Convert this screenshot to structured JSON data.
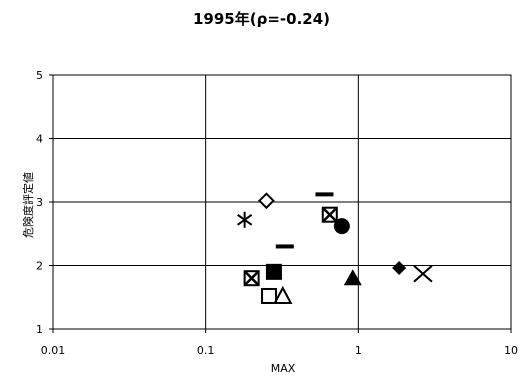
{
  "chart_data": {
    "type": "scatter",
    "title": "1995年(ρ=-0.24)",
    "xlabel": "MAX",
    "ylabel": "危険度評定値",
    "x_scale": "log",
    "xlim": [
      0.01,
      10
    ],
    "ylim": [
      1,
      5
    ],
    "x_ticks": [
      "0.01",
      "0.1",
      "1",
      "10"
    ],
    "y_ticks": [
      "1",
      "2",
      "3",
      "4",
      "5"
    ],
    "grid": "major gridlines on both axes",
    "legend": "none",
    "points": [
      {
        "marker": "diamond-open",
        "x": 0.25,
        "y": 3.02
      },
      {
        "marker": "asterisk",
        "x": 0.18,
        "y": 2.72
      },
      {
        "marker": "dash",
        "x": 0.6,
        "y": 3.12
      },
      {
        "marker": "x-square",
        "x": 0.65,
        "y": 2.8
      },
      {
        "marker": "circle-filled",
        "x": 0.78,
        "y": 2.62
      },
      {
        "marker": "dash",
        "x": 0.33,
        "y": 2.3
      },
      {
        "marker": "square-filled",
        "x": 0.28,
        "y": 1.9
      },
      {
        "marker": "x-square",
        "x": 0.2,
        "y": 1.8
      },
      {
        "marker": "triangle-filled",
        "x": 0.92,
        "y": 1.8
      },
      {
        "marker": "diamond-filled",
        "x": 1.85,
        "y": 1.96
      },
      {
        "marker": "x",
        "x": 2.65,
        "y": 1.87
      },
      {
        "marker": "square-open",
        "x": 0.26,
        "y": 1.52
      },
      {
        "marker": "triangle-open",
        "x": 0.32,
        "y": 1.52
      }
    ]
  }
}
